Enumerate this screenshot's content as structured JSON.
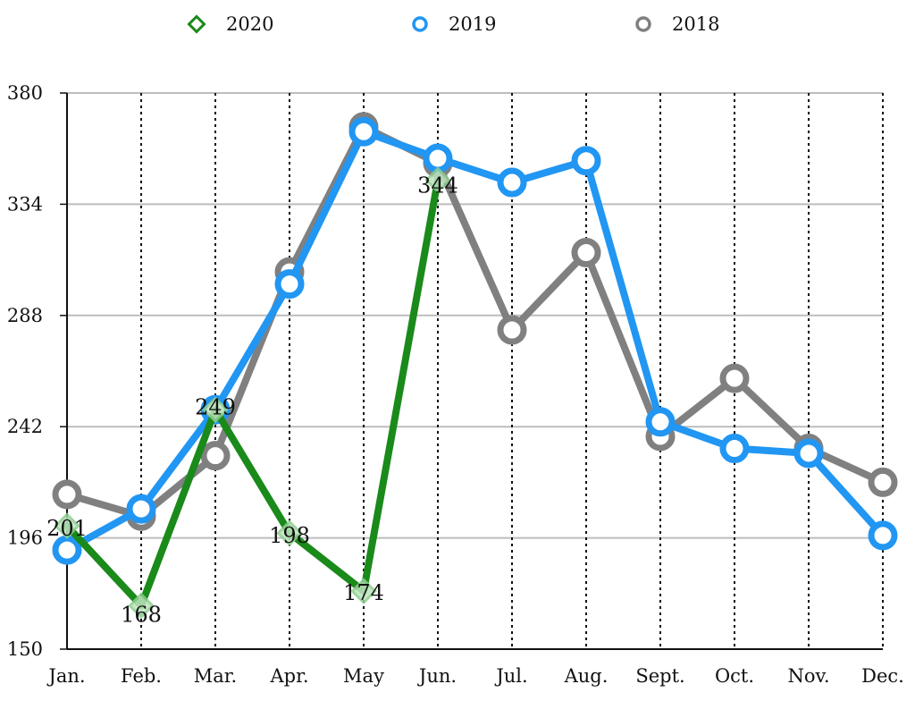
{
  "chart_data": {
    "type": "line",
    "title": "",
    "xlabel": "",
    "ylabel": "",
    "categories": [
      "Jan.",
      "Feb.",
      "Mar.",
      "Apr.",
      "May",
      "Jun.",
      "Jul.",
      "Aug.",
      "Sept.",
      "Oct.",
      "Nov.",
      "Dec."
    ],
    "ylim": [
      150,
      380
    ],
    "yticks": [
      "380",
      "334",
      "288",
      "242",
      "196",
      "150"
    ],
    "ytick_values": [
      380,
      334,
      288,
      242,
      196,
      150
    ],
    "grid": {
      "horizontal": "solid",
      "vertical": "dotted"
    },
    "legend_position": "top-center",
    "series": [
      {
        "name": "2020",
        "color": "#1a8a1a",
        "marker": "diamond",
        "values": [
          201,
          168,
          249,
          198,
          174,
          344,
          null,
          null,
          null,
          null,
          null,
          null
        ],
        "data_labels": [
          "201",
          "168",
          "249",
          "198",
          "174",
          "344",
          "",
          "",
          "",
          "",
          "",
          ""
        ]
      },
      {
        "name": "2019",
        "color": "#2196f3",
        "marker": "circle",
        "values": [
          191,
          208,
          249,
          301,
          364,
          353,
          343,
          352,
          244,
          233,
          231,
          197
        ]
      },
      {
        "name": "2018",
        "color": "#808080",
        "marker": "circle",
        "values": [
          214,
          205,
          230,
          306,
          366,
          351,
          282,
          314,
          238,
          262,
          233,
          219
        ]
      }
    ]
  }
}
